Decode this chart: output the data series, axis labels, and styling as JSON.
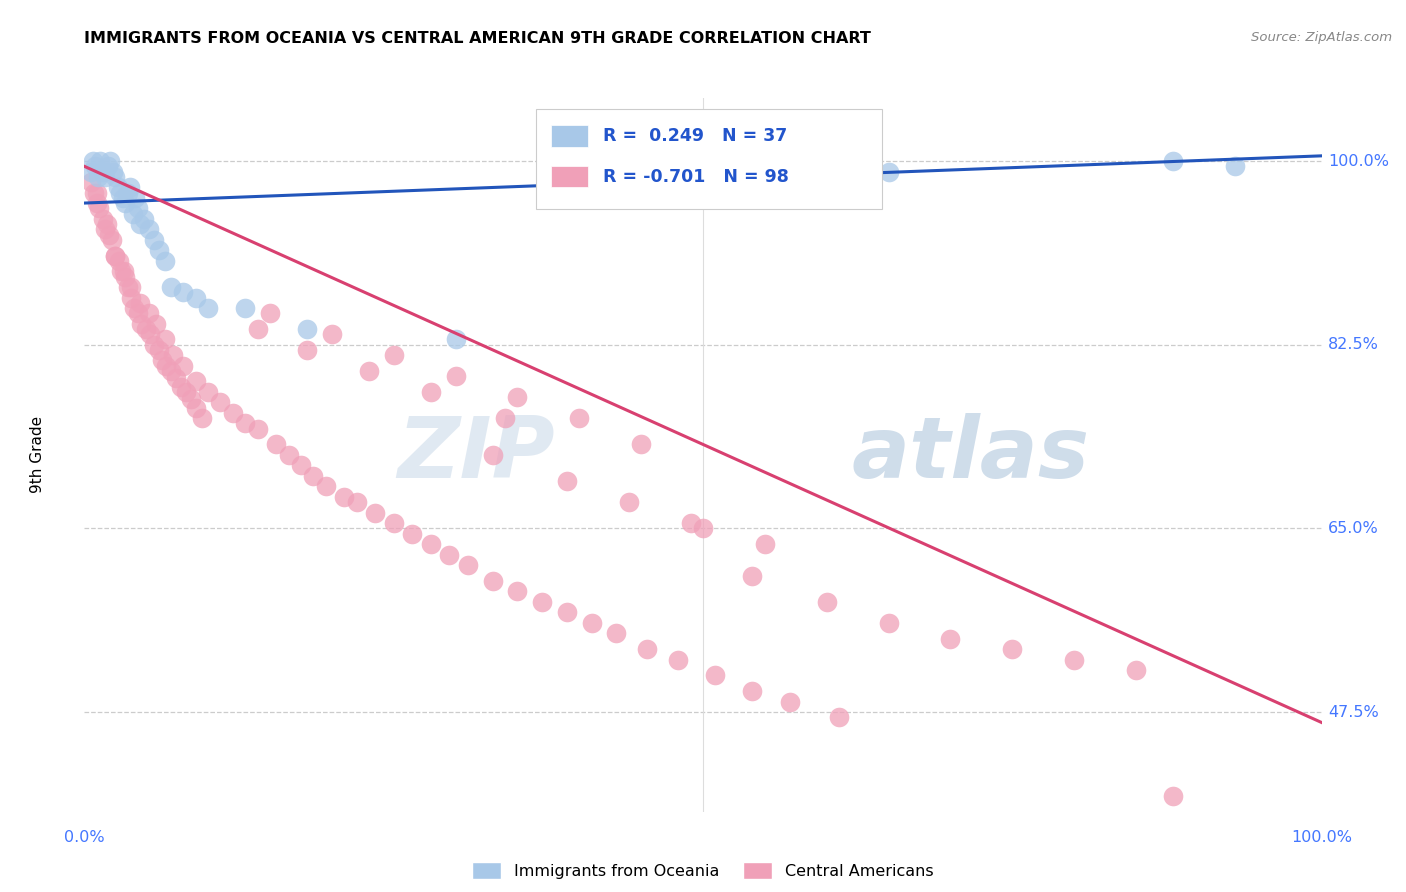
{
  "title": "IMMIGRANTS FROM OCEANIA VS CENTRAL AMERICAN 9TH GRADE CORRELATION CHART",
  "source": "Source: ZipAtlas.com",
  "ylabel": "9th Grade",
  "ytick_labels": [
    "47.5%",
    "65.0%",
    "82.5%",
    "100.0%"
  ],
  "ytick_values": [
    0.475,
    0.65,
    0.825,
    1.0
  ],
  "xmin": 0.0,
  "xmax": 1.0,
  "ymin": 0.38,
  "ymax": 1.06,
  "legend_r_blue": "R =  0.249",
  "legend_n_blue": "N = 37",
  "legend_r_pink": "R = -0.701",
  "legend_n_pink": "N = 98",
  "blue_color": "#a8c8e8",
  "pink_color": "#f0a0b8",
  "line_blue_color": "#2255bb",
  "line_pink_color": "#d84070",
  "legend_label_blue": "Immigrants from Oceania",
  "legend_label_pink": "Central Americans",
  "watermark_zip": "ZIP",
  "watermark_atlas": "atlas",
  "blue_line_x0": 0.0,
  "blue_line_y0": 0.96,
  "blue_line_x1": 1.0,
  "blue_line_y1": 1.005,
  "pink_line_x0": 0.0,
  "pink_line_y0": 0.995,
  "pink_line_x1": 1.0,
  "pink_line_y1": 0.465,
  "blue_dots_x": [
    0.005,
    0.007,
    0.009,
    0.011,
    0.013,
    0.015,
    0.017,
    0.019,
    0.021,
    0.023,
    0.025,
    0.027,
    0.029,
    0.031,
    0.033,
    0.035,
    0.037,
    0.039,
    0.041,
    0.043,
    0.045,
    0.048,
    0.052,
    0.056,
    0.06,
    0.065,
    0.07,
    0.08,
    0.09,
    0.1,
    0.13,
    0.18,
    0.3,
    0.55,
    0.65,
    0.88,
    0.93
  ],
  "blue_dots_y": [
    0.99,
    1.0,
    0.995,
    0.985,
    1.0,
    0.99,
    0.985,
    0.995,
    1.0,
    0.99,
    0.985,
    0.975,
    0.97,
    0.965,
    0.96,
    0.97,
    0.975,
    0.95,
    0.965,
    0.955,
    0.94,
    0.945,
    0.935,
    0.925,
    0.915,
    0.905,
    0.88,
    0.875,
    0.87,
    0.86,
    0.86,
    0.84,
    0.83,
    0.975,
    0.99,
    1.0,
    0.995
  ],
  "pink_dots_x": [
    0.005,
    0.008,
    0.01,
    0.012,
    0.015,
    0.017,
    0.02,
    0.022,
    0.025,
    0.028,
    0.03,
    0.033,
    0.035,
    0.038,
    0.04,
    0.043,
    0.046,
    0.05,
    0.053,
    0.056,
    0.06,
    0.063,
    0.066,
    0.07,
    0.074,
    0.078,
    0.082,
    0.086,
    0.09,
    0.095,
    0.01,
    0.018,
    0.025,
    0.032,
    0.038,
    0.045,
    0.052,
    0.058,
    0.065,
    0.072,
    0.08,
    0.09,
    0.1,
    0.11,
    0.12,
    0.13,
    0.14,
    0.155,
    0.165,
    0.175,
    0.185,
    0.195,
    0.21,
    0.22,
    0.235,
    0.25,
    0.265,
    0.28,
    0.295,
    0.31,
    0.33,
    0.35,
    0.37,
    0.39,
    0.41,
    0.43,
    0.455,
    0.48,
    0.51,
    0.54,
    0.57,
    0.61,
    0.65,
    0.7,
    0.75,
    0.8,
    0.85,
    0.33,
    0.39,
    0.44,
    0.49,
    0.15,
    0.2,
    0.25,
    0.3,
    0.35,
    0.4,
    0.45,
    0.5,
    0.55,
    0.14,
    0.18,
    0.23,
    0.28,
    0.34,
    0.54,
    0.6,
    0.88
  ],
  "pink_dots_y": [
    0.98,
    0.97,
    0.96,
    0.955,
    0.945,
    0.935,
    0.93,
    0.925,
    0.91,
    0.905,
    0.895,
    0.89,
    0.88,
    0.87,
    0.86,
    0.855,
    0.845,
    0.84,
    0.835,
    0.825,
    0.82,
    0.81,
    0.805,
    0.8,
    0.793,
    0.785,
    0.78,
    0.773,
    0.765,
    0.755,
    0.97,
    0.94,
    0.91,
    0.895,
    0.88,
    0.865,
    0.855,
    0.845,
    0.83,
    0.815,
    0.805,
    0.79,
    0.78,
    0.77,
    0.76,
    0.75,
    0.745,
    0.73,
    0.72,
    0.71,
    0.7,
    0.69,
    0.68,
    0.675,
    0.665,
    0.655,
    0.645,
    0.635,
    0.625,
    0.615,
    0.6,
    0.59,
    0.58,
    0.57,
    0.56,
    0.55,
    0.535,
    0.525,
    0.51,
    0.495,
    0.485,
    0.47,
    0.56,
    0.545,
    0.535,
    0.525,
    0.515,
    0.72,
    0.695,
    0.675,
    0.655,
    0.855,
    0.835,
    0.815,
    0.795,
    0.775,
    0.755,
    0.73,
    0.65,
    0.635,
    0.84,
    0.82,
    0.8,
    0.78,
    0.755,
    0.605,
    0.58,
    0.395
  ]
}
